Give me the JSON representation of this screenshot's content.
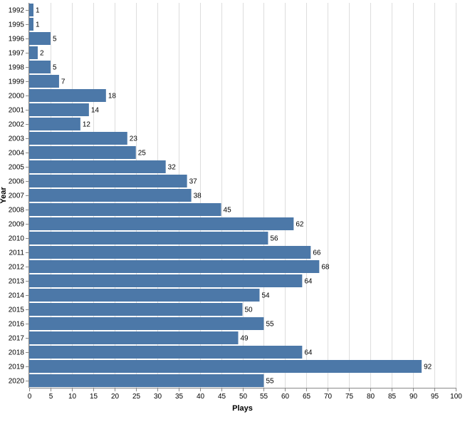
{
  "chart_data": {
    "type": "bar",
    "orientation": "horizontal",
    "categories": [
      "1992",
      "1995",
      "1996",
      "1997",
      "1998",
      "1999",
      "2000",
      "2001",
      "2002",
      "2003",
      "2004",
      "2005",
      "2006",
      "2007",
      "2008",
      "2009",
      "2010",
      "2011",
      "2012",
      "2013",
      "2014",
      "2015",
      "2016",
      "2017",
      "2018",
      "2019",
      "2020"
    ],
    "values": [
      1,
      1,
      5,
      2,
      5,
      7,
      18,
      14,
      12,
      23,
      25,
      32,
      37,
      38,
      45,
      62,
      56,
      66,
      68,
      64,
      54,
      50,
      55,
      49,
      64,
      92,
      55
    ],
    "xlabel": "Plays",
    "ylabel": "Year",
    "xlim": [
      0,
      100
    ],
    "x_ticks": [
      0,
      5,
      10,
      15,
      20,
      25,
      30,
      35,
      40,
      45,
      50,
      55,
      60,
      65,
      70,
      75,
      80,
      85,
      90,
      95,
      100
    ],
    "grid": true,
    "data_labels": true,
    "legend": "none",
    "bar_color": "#4c78a8"
  }
}
